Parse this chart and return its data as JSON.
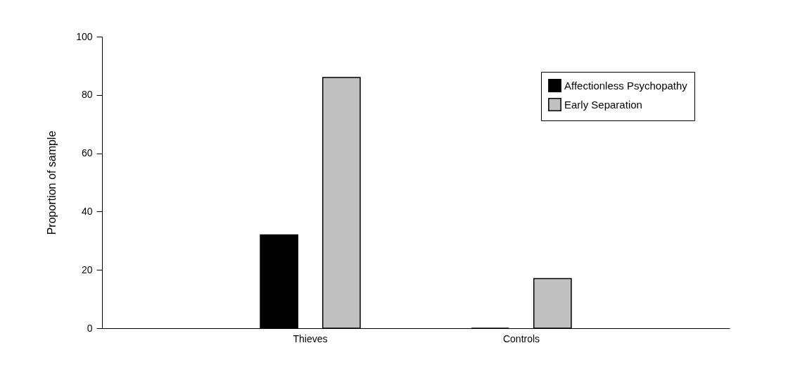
{
  "chart_data": {
    "type": "bar",
    "ylabel": "Proportion of sample",
    "categories": [
      "Thieves",
      "Controls"
    ],
    "series": [
      {
        "name": "Affectionless Psychopathy",
        "color": "#000000",
        "values": [
          32,
          0
        ]
      },
      {
        "name": "Early Separation",
        "color": "#c0c0c0",
        "values": [
          86,
          17
        ]
      }
    ],
    "ylim": [
      0,
      100
    ],
    "yticks": [
      0,
      20,
      40,
      60,
      80,
      100
    ],
    "grid": false,
    "legend": "top right"
  }
}
